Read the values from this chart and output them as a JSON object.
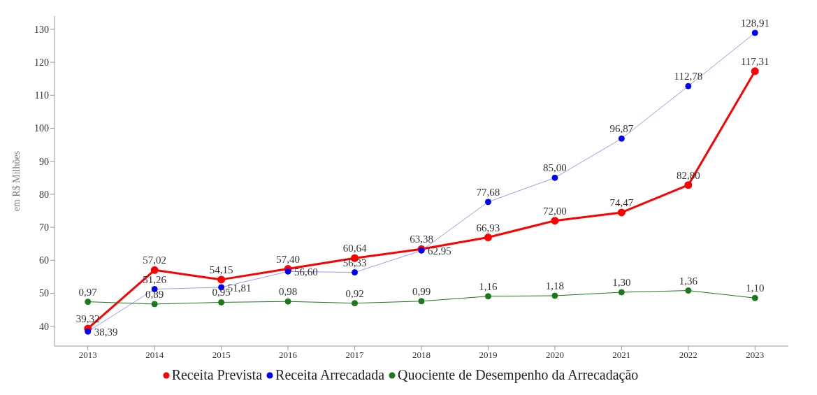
{
  "chart_data": {
    "type": "line",
    "ylabel": "em R$ Milhões",
    "categories": [
      "2013",
      "2014",
      "2015",
      "2016",
      "2017",
      "2018",
      "2019",
      "2020",
      "2021",
      "2022",
      "2023"
    ],
    "ylim": [
      34,
      134
    ],
    "yticks": [
      40,
      50,
      60,
      70,
      80,
      90,
      100,
      110,
      120,
      130
    ],
    "y2lim": [
      -0.57,
      10.9
    ],
    "legend": "bottom",
    "marker": "circle",
    "grid": false,
    "series": [
      {
        "name": "Receita Prevista",
        "color": "#ff0000",
        "values": [
          39.32,
          57.02,
          54.15,
          57.4,
          60.64,
          63.38,
          66.93,
          72.0,
          74.47,
          82.8,
          117.31
        ],
        "value_labels": [
          "39,32",
          "57,02",
          "54,15",
          "57,40",
          "60,64",
          "63,38",
          "66,93",
          "72,00",
          "74,47",
          "82,80",
          "117,31"
        ]
      },
      {
        "name": "Receita Arrecadada",
        "color": "#0000ff",
        "values": [
          38.39,
          51.26,
          51.81,
          56.6,
          56.33,
          62.95,
          77.68,
          85.0,
          96.87,
          112.78,
          128.91
        ],
        "value_labels": [
          "38,39",
          "51,26",
          "51,81",
          "56,60",
          "56,33",
          "62,95",
          "77,68",
          "85,00",
          "96,87",
          "112,78",
          "128,91"
        ]
      },
      {
        "name": "Quociente de Desempenho da Arrecadação",
        "color": "#1a7a1a",
        "axis": "y2",
        "values": [
          0.97,
          0.89,
          0.95,
          0.98,
          0.92,
          0.99,
          1.16,
          1.18,
          1.3,
          1.36,
          1.1
        ],
        "value_labels": [
          "0,97",
          "0,89",
          "0,95",
          "0,98",
          "0,92",
          "0,99",
          "1,16",
          "1,18",
          "1,30",
          "1,36",
          "1,10"
        ]
      }
    ]
  }
}
